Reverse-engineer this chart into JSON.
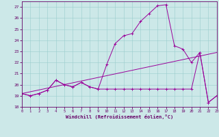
{
  "xlabel": "Windchill (Refroidissement éolien,°C)",
  "xlim": [
    0,
    23
  ],
  "ylim": [
    18,
    27.5
  ],
  "yticks": [
    18,
    19,
    20,
    21,
    22,
    23,
    24,
    25,
    26,
    27
  ],
  "xticks": [
    0,
    1,
    2,
    3,
    4,
    5,
    6,
    7,
    8,
    9,
    10,
    11,
    12,
    13,
    14,
    15,
    16,
    17,
    18,
    19,
    20,
    21,
    22,
    23
  ],
  "bg_color": "#cce8e8",
  "line_color": "#990099",
  "grid_color": "#99cccc",
  "line1_x": [
    0,
    1,
    2,
    3,
    4,
    5,
    6,
    7,
    8,
    9,
    10,
    11,
    12,
    13,
    14,
    15,
    16,
    17,
    18,
    19,
    20,
    21,
    22,
    23
  ],
  "line1_y": [
    19.2,
    19.0,
    19.2,
    19.5,
    20.4,
    20.0,
    19.8,
    20.2,
    19.8,
    19.6,
    19.6,
    19.6,
    19.6,
    19.6,
    19.6,
    19.6,
    19.6,
    19.6,
    19.6,
    19.6,
    19.6,
    22.9,
    18.4,
    19.0
  ],
  "line2_x": [
    0,
    1,
    2,
    3,
    4,
    5,
    6,
    7,
    8,
    9,
    10,
    11,
    12,
    13,
    14,
    15,
    16,
    17,
    18,
    19,
    20,
    21,
    22,
    23
  ],
  "line2_y": [
    19.2,
    19.0,
    19.2,
    19.5,
    20.4,
    20.0,
    19.8,
    20.2,
    19.8,
    19.6,
    21.8,
    23.7,
    24.4,
    24.6,
    25.7,
    26.4,
    27.1,
    27.2,
    23.5,
    23.2,
    22.0,
    22.9,
    18.4,
    19.0
  ],
  "line3_x": [
    0,
    23
  ],
  "line3_y": [
    19.2,
    22.9
  ]
}
